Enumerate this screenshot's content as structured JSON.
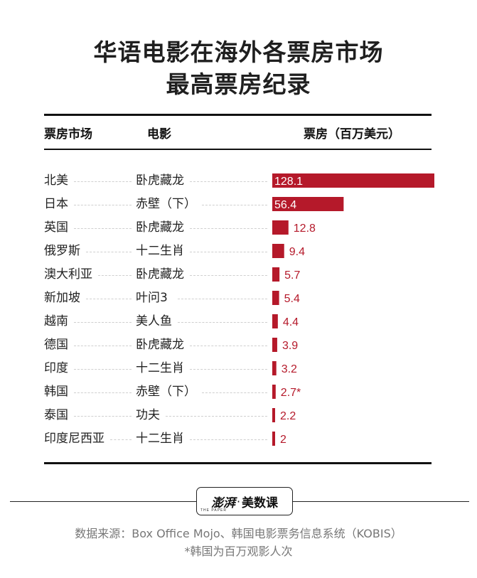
{
  "title_line1": "华语电影在海外各票房市场",
  "title_line2": "最高票房纪录",
  "headers": {
    "market": "票房市场",
    "movie": "电影",
    "box_office": "票房（百万美元）"
  },
  "rows": [
    {
      "market": "北美",
      "movie": "卧虎藏龙"
    },
    {
      "market": "日本",
      "movie": "赤壁（下）"
    },
    {
      "market": "英国",
      "movie": "卧虎藏龙"
    },
    {
      "market": "俄罗斯",
      "movie": "十二生肖"
    },
    {
      "market": "澳大利亚",
      "movie": "卧虎藏龙"
    },
    {
      "market": "新加坡",
      "movie": "叶问3"
    },
    {
      "market": "越南",
      "movie": "美人鱼"
    },
    {
      "market": "德国",
      "movie": "卧虎藏龙"
    },
    {
      "market": "印度",
      "movie": "十二生肖"
    },
    {
      "market": "韩国",
      "movie": "赤壁（下）"
    },
    {
      "market": "泰国",
      "movie": "功夫"
    },
    {
      "market": "印度尼西亚",
      "movie": "十二生肖"
    }
  ],
  "chart_data": {
    "type": "bar",
    "orientation": "horizontal",
    "title": "华语电影在海外各票房市场最高票房纪录",
    "categories": [
      "北美",
      "日本",
      "英国",
      "俄罗斯",
      "澳大利亚",
      "新加坡",
      "越南",
      "德国",
      "印度",
      "韩国",
      "泰国",
      "印度尼西亚"
    ],
    "values": [
      128.1,
      56.4,
      12.8,
      9.4,
      5.7,
      5.4,
      4.4,
      3.9,
      3.2,
      2.7,
      2.2,
      2
    ],
    "value_labels": [
      "128.1",
      "56.4",
      "12.8",
      "9.4",
      "5.7",
      "5.4",
      "4.4",
      "3.9",
      "3.2",
      "2.7*",
      "2.2",
      "2"
    ],
    "xlim": [
      0,
      128.1
    ],
    "xlabel": "票房（百万美元）",
    "bar_color": "#b5192a"
  },
  "brand": {
    "logo": "澎湃",
    "dot": "·",
    "name": "美数课",
    "sub": "THE PAPER"
  },
  "footer": {
    "source": "数据来源：Box Office Mojo、韩国电影票务信息系统（KOBIS）",
    "note": "*韩国为百万观影人次"
  }
}
